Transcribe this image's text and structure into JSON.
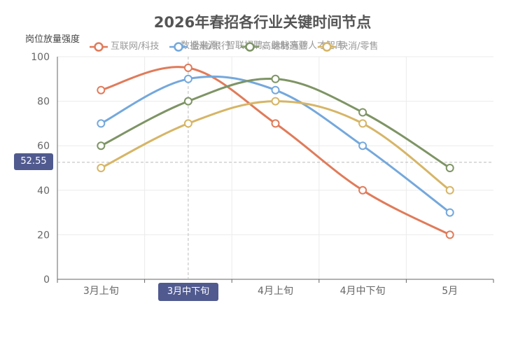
{
  "chart_data": {
    "type": "line",
    "title": "2026年春招各行业关键时间节点",
    "subtitle": "数据来源：智联招聘、脉脉高聘人才智库",
    "ylabel": "岗位放量强度",
    "xlabel": "",
    "categories": [
      "3月上旬",
      "3月中下旬",
      "4月上旬",
      "4月中下旬",
      "5月"
    ],
    "ylim": [
      0,
      100
    ],
    "yticks": [
      0,
      20,
      40,
      60,
      80,
      100
    ],
    "smooth": true,
    "grid": true,
    "legend_position": "top",
    "series": [
      {
        "name": "互联网/科技",
        "color": "#e07b5a",
        "values": [
          85,
          95,
          70,
          40,
          20
        ]
      },
      {
        "name": "金融/银行",
        "color": "#74a8dc",
        "values": [
          70,
          90,
          85,
          60,
          30
        ]
      },
      {
        "name": "高端制造业",
        "color": "#7e9465",
        "values": [
          60,
          80,
          90,
          75,
          50
        ]
      },
      {
        "name": "快消/零售",
        "color": "#d6b566",
        "values": [
          50,
          70,
          80,
          70,
          40
        ]
      }
    ],
    "axis_pointer": {
      "x_label": "3月中下旬",
      "y_label": "52.55",
      "y_value": 52.55,
      "color": "#505a8f"
    }
  }
}
